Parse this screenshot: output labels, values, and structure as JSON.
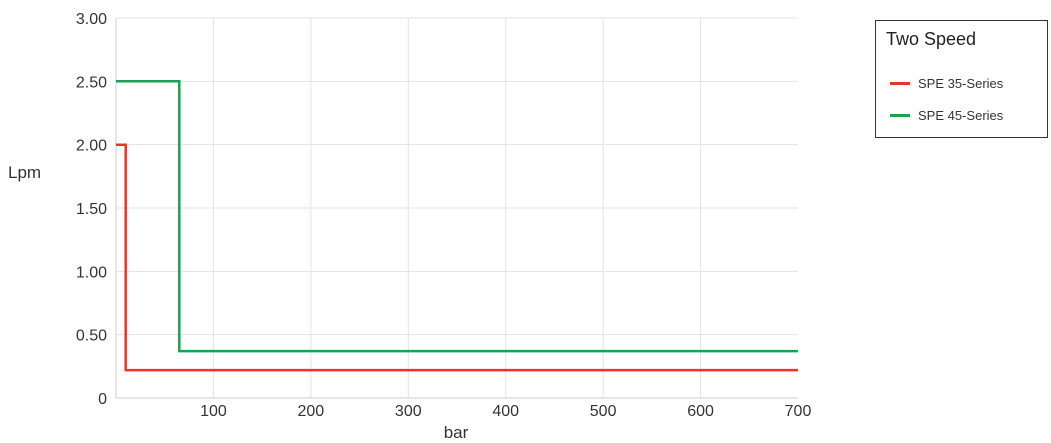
{
  "chart_data": {
    "type": "line",
    "title": "",
    "xlabel": "bar",
    "ylabel": "Lpm",
    "xlim": [
      0,
      700
    ],
    "ylim": [
      0,
      3.0
    ],
    "x_ticks": [
      100,
      200,
      300,
      400,
      500,
      600,
      700
    ],
    "x_tick_labels": [
      "100",
      "200",
      "300",
      "400",
      "500",
      "600",
      "700"
    ],
    "y_ticks": [
      0,
      0.5,
      1.0,
      1.5,
      2.0,
      2.5,
      3.0
    ],
    "y_tick_labels": [
      "0",
      "0.50",
      "1.00",
      "1.50",
      "2.00",
      "2.50",
      "3.00"
    ],
    "grid": true,
    "legend": {
      "title": "Two Speed",
      "position": "top-right"
    },
    "series": [
      {
        "name": "SPE 35-Series",
        "color": "#e8352a",
        "x": [
          0,
          10,
          10,
          700
        ],
        "y": [
          2.0,
          2.0,
          0.22,
          0.22
        ]
      },
      {
        "name": "SPE 45-Series",
        "color": "#1aa153",
        "x": [
          0,
          65,
          65,
          700
        ],
        "y": [
          2.5,
          2.5,
          0.37,
          0.37
        ]
      }
    ]
  }
}
